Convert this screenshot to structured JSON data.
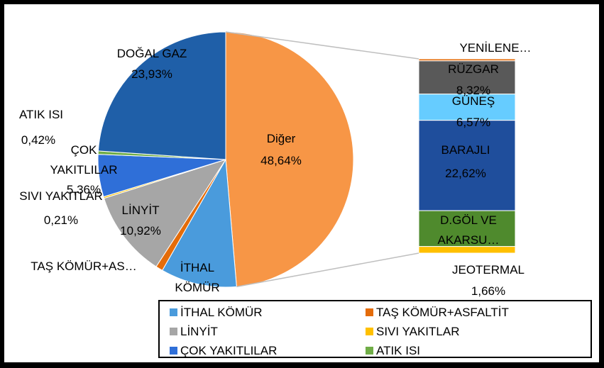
{
  "chart_data": {
    "type": "bar-of-pie",
    "categories": [
      "İTHAL KÖMÜR",
      "TAŞ KÖMÜR+ASFALTİT",
      "LİNYİT",
      "SIVI YAKITLAR",
      "ÇOK YAKITLILAR",
      "ATIK ISI",
      "DOĞAL GAZ"
    ],
    "label_names": [
      "İTHAL KÖMÜR",
      "TAŞ KÖMÜR+AS…",
      "LİNYİT",
      "SIVI YAKITLAR",
      "ÇOK YAKITLILAR",
      "ATIK ISI",
      "DOĞAL GAZ"
    ],
    "values": [
      9.62,
      0.9,
      10.92,
      0.21,
      5.36,
      0.42,
      23.93
    ],
    "value_labels": [
      null,
      null,
      "10,92%",
      "0,21%",
      "5,36%",
      "0,42%",
      "23,93%"
    ],
    "colors": [
      "#4a9bdc",
      "#e46c0a",
      "#a6a6a6",
      "#ffc000",
      "#2f6fd8",
      "#70ad47",
      "#1f5fa8"
    ],
    "other_label": "Diğer",
    "other_value": 48.64,
    "other_value_label": "48,64%",
    "other_color": "#f79646",
    "breakdown": {
      "label_names": [
        "YENİLENE…",
        "RÜZGAR",
        "GÜNEŞ",
        "BARAJLI",
        "D.GÖL VE AKARSU…",
        "JEOTERMAL"
      ],
      "values": [
        0.5,
        8.32,
        6.57,
        22.62,
        8.97,
        1.66
      ],
      "value_labels": [
        null,
        "8,32%",
        "6,57%",
        "22,62%",
        null,
        "1,66%"
      ],
      "colors": [
        "#e46c0a",
        "#595959",
        "#66ccff",
        "#1f4e9c",
        "#4f8a2d",
        "#ffc000"
      ]
    }
  }
}
